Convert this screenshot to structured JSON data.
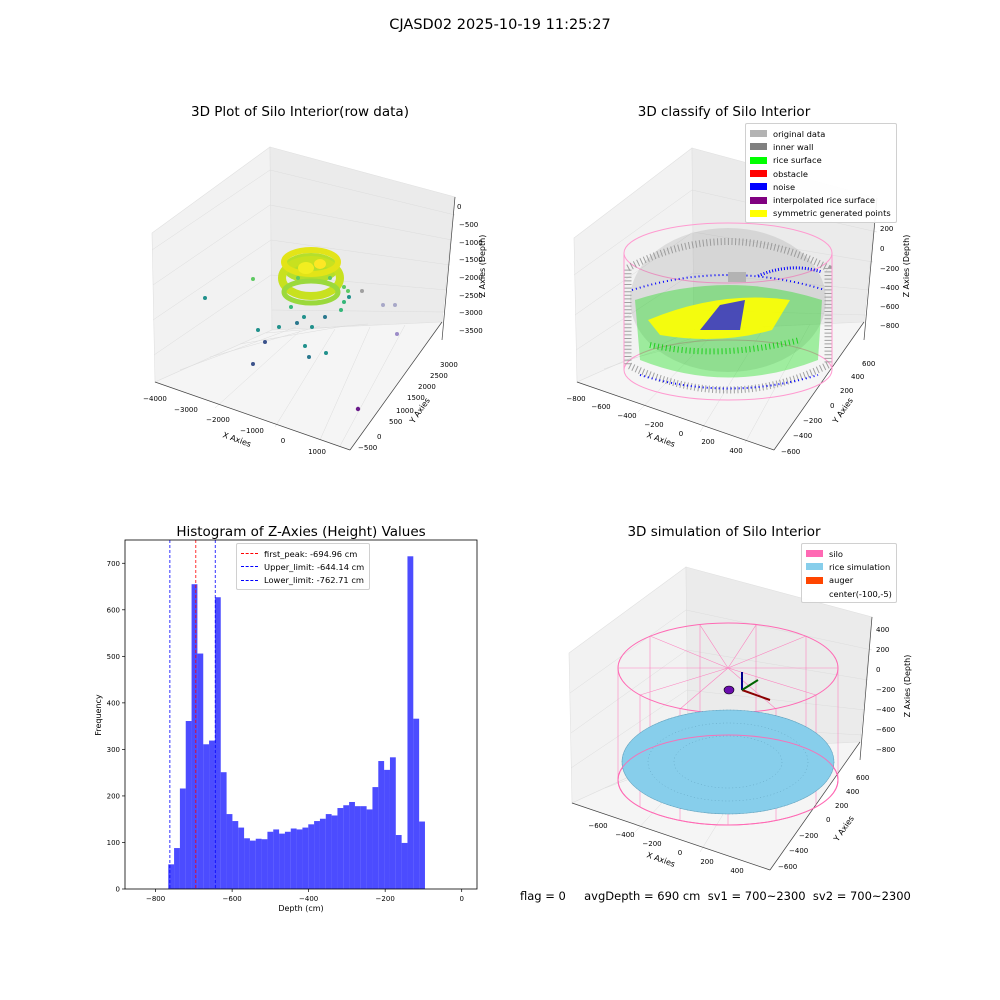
{
  "figure": {
    "suptitle": "CJASD02 2025-10-19 11:25:27",
    "footer": "flag = 0     avgDepth = 690 cm  sv1 = 700~2300  sv2 = 700~2300"
  },
  "panels": {
    "raw": {
      "title": "3D Plot of Silo Interior(row data)",
      "xlabel": "X Axies",
      "ylabel": "Y Axies",
      "zlabel": "Z Axies (Depth)",
      "xticks": [
        "−4000",
        "−3000",
        "−2000",
        "−1000",
        "0",
        "1000"
      ],
      "yticks": [
        "−500",
        "0",
        "500",
        "1000",
        "1500",
        "2000",
        "2500",
        "3000"
      ],
      "zticks": [
        "0",
        "−500",
        "−1000",
        "−1500",
        "−2000",
        "−2500",
        "−3000",
        "−3500"
      ]
    },
    "classify": {
      "title": "3D classify of Silo Interior",
      "xlabel": "X Axies",
      "ylabel": "Y Axies",
      "zlabel": "Z Axies (Depth)",
      "xticks": [
        "−800",
        "−600",
        "−400",
        "−200",
        "0",
        "200",
        "400"
      ],
      "yticks": [
        "−600",
        "−400",
        "−200",
        "0",
        "200",
        "400",
        "600"
      ],
      "zticks": [
        "200",
        "0",
        "−200",
        "−400",
        "−600",
        "−800"
      ],
      "legend": [
        {
          "label": "original data",
          "color": "#b3b3b3"
        },
        {
          "label": "inner wall",
          "color": "#808080"
        },
        {
          "label": "rice surface",
          "color": "#00ff00"
        },
        {
          "label": "obstacle",
          "color": "#ff0000"
        },
        {
          "label": "noise",
          "color": "#0000ff"
        },
        {
          "label": "interpolated rice surface",
          "color": "#800080"
        },
        {
          "label": "symmetric generated points",
          "color": "#ffff00"
        }
      ]
    },
    "simulation": {
      "title": "3D simulation of Silo Interior",
      "xlabel": "X Axies",
      "ylabel": "Y Axies",
      "zlabel": "Z Axies (Depth)",
      "xticks": [
        "−600",
        "−400",
        "−200",
        "0",
        "200",
        "400"
      ],
      "yticks": [
        "−600",
        "−400",
        "−200",
        "0",
        "200",
        "400",
        "600"
      ],
      "zticks": [
        "400",
        "200",
        "0",
        "−200",
        "−400",
        "−600",
        "−800"
      ],
      "legend": [
        {
          "label": "silo",
          "color": "#ff69b4"
        },
        {
          "label": "rice simulation",
          "color": "#87ceeb"
        },
        {
          "label": "auger",
          "color": "#ff4500"
        },
        {
          "label": "center(-100,-5)",
          "color": ""
        }
      ]
    }
  },
  "chart_data": {
    "type": "bar",
    "title": "Histogram of Z-Axies (Height) Values",
    "xlabel": "Depth (cm)",
    "ylabel": "Frequency",
    "xlim": [
      -880,
      40
    ],
    "ylim": [
      0,
      750
    ],
    "xticks": [
      -800,
      -600,
      -400,
      -200,
      0
    ],
    "yticks": [
      0,
      100,
      200,
      300,
      400,
      500,
      600,
      700
    ],
    "color": "#0000ff",
    "bin_width": 15.25,
    "bin_start": -767,
    "values": [
      53,
      88,
      216,
      361,
      655,
      506,
      311,
      319,
      627,
      251,
      161,
      146,
      132,
      109,
      104,
      108,
      107,
      123,
      128,
      119,
      123,
      130,
      128,
      132,
      139,
      146,
      151,
      161,
      158,
      174,
      180,
      187,
      178,
      178,
      171,
      219,
      275,
      256,
      283,
      116,
      99,
      715,
      366,
      145
    ],
    "vlines": [
      {
        "label": "first_peak: -694.96 cm",
        "x": -694.96,
        "color": "#ff0000"
      },
      {
        "label": "Upper_limit: -644.14 cm",
        "x": -644.14,
        "color": "#0000ff"
      },
      {
        "label": "Lower_limit: -762.71 cm",
        "x": -762.71,
        "color": "#0000ff"
      }
    ]
  }
}
